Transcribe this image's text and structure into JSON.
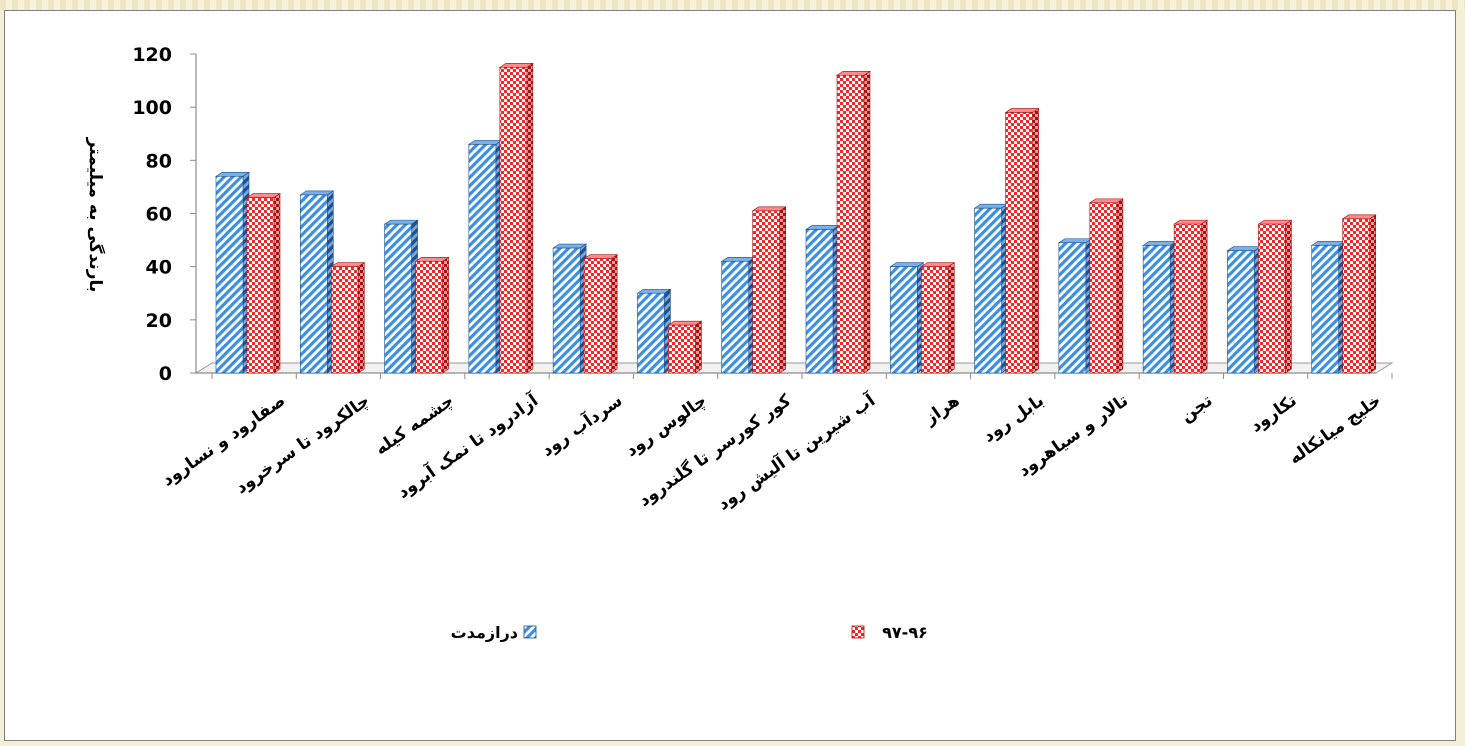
{
  "chart_data": {
    "type": "bar",
    "title": "",
    "xlabel": "",
    "ylabel": "بارندگی به میلیمتر",
    "ylim": [
      0,
      120
    ],
    "yticks": [
      0,
      20,
      40,
      60,
      80,
      100,
      120
    ],
    "grid": false,
    "legend_position": "bottom",
    "categories": [
      "صفارود و نسارود",
      "چالکرود تا سرخرود",
      "چشمه کیله",
      "آزادرود تا نمک آبرود",
      "سردآب رود",
      "چالوس رود",
      "کور کورسر  تا گلندرود",
      "آب شیرین  تا آلیش رود",
      "هراز",
      "بابل رود",
      "تالار و سیاهرود",
      "تجن",
      "تکارود",
      "خلیج میانکاله"
    ],
    "series": [
      {
        "name": "درازمدت",
        "color": "#3d8fe0",
        "pattern": "diagonal-stripes",
        "values": [
          74,
          67,
          56,
          86,
          47,
          30,
          42,
          54,
          40,
          62,
          49,
          48,
          46,
          48
        ]
      },
      {
        "name": "۹۷-۹۶",
        "color": "#ff2b2b",
        "pattern": "checkerboard",
        "values": [
          66,
          40,
          42,
          115,
          43,
          18,
          61,
          112,
          40,
          98,
          64,
          56,
          56,
          58
        ]
      }
    ]
  }
}
